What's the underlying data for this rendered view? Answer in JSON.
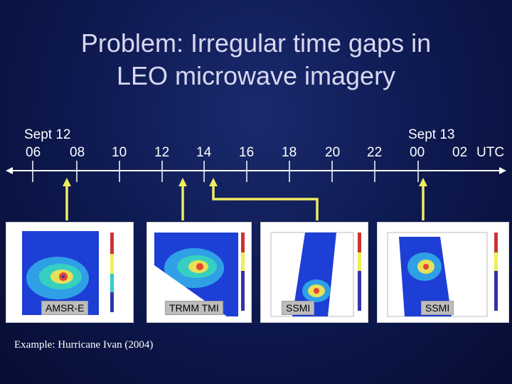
{
  "title_line1": "Problem: Irregular time gaps in",
  "title_line2": "LEO microwave imagery",
  "timeline": {
    "date_start": "Sept 12",
    "date_end": "Sept 13",
    "hours": [
      "06",
      "08",
      "10",
      "12",
      "14",
      "16",
      "18",
      "20",
      "22",
      "00",
      "02"
    ],
    "unit": "UTC"
  },
  "images": [
    {
      "sensor": "AMSR-E"
    },
    {
      "sensor": "TRMM TMI"
    },
    {
      "sensor": "SSMI"
    },
    {
      "sensor": "SSMI"
    }
  ],
  "example": "Example: Hurricane Ivan (2004)",
  "colors": {
    "background": "#0e1a52",
    "arrow": "#f0ec60",
    "timeline": "#ffffff"
  }
}
